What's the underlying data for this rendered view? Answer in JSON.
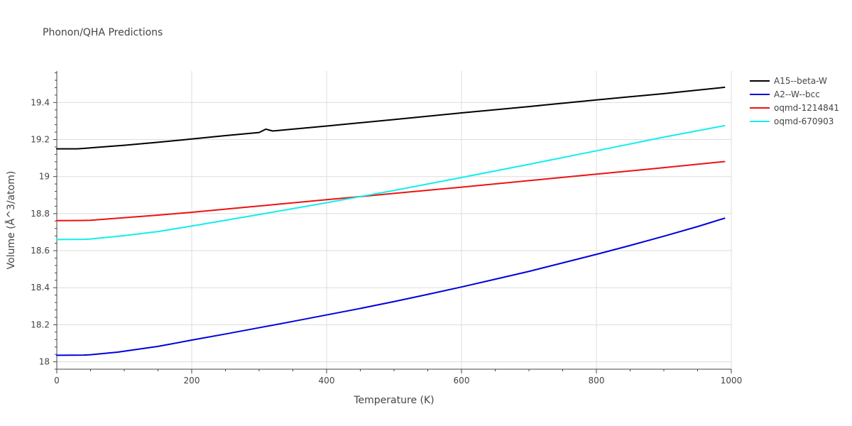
{
  "chart_data": {
    "type": "line",
    "title": "Phonon/QHA Predictions",
    "xlabel": "Temperature (K)",
    "ylabel": "Volume (Å^3/atom)",
    "xlim": [
      0,
      1000
    ],
    "ylim": [
      17.96,
      19.57
    ],
    "x_ticks": [
      0,
      200,
      400,
      600,
      800,
      1000
    ],
    "x_tick_labels": [
      "0",
      "200",
      "400",
      "600",
      "800",
      "1000"
    ],
    "y_ticks": [
      18,
      18.2,
      18.4,
      18.6,
      18.8,
      19,
      19.2,
      19.4
    ],
    "y_tick_labels": [
      "18",
      "18.2",
      "18.4",
      "18.6",
      "18.8",
      "19",
      "19.2",
      "19.4"
    ],
    "grid": true,
    "legend_position": "top-right",
    "series": [
      {
        "name": "A15--beta-W",
        "color": "#000000",
        "x": [
          0,
          30,
          40,
          60,
          100,
          150,
          200,
          250,
          300,
          310,
          320,
          350,
          400,
          500,
          600,
          700,
          800,
          900,
          990
        ],
        "y": [
          19.15,
          19.15,
          19.152,
          19.158,
          19.169,
          19.185,
          19.203,
          19.221,
          19.238,
          19.256,
          19.246,
          19.256,
          19.273,
          19.308,
          19.344,
          19.378,
          19.414,
          19.448,
          19.482
        ]
      },
      {
        "name": "A2--W--bcc",
        "color": "#0000dd",
        "x": [
          0,
          40,
          50,
          90,
          150,
          200,
          250,
          300,
          350,
          400,
          450,
          500,
          550,
          600,
          650,
          700,
          750,
          800,
          850,
          900,
          950,
          990
        ],
        "y": [
          18.035,
          18.036,
          18.038,
          18.052,
          18.083,
          18.117,
          18.15,
          18.184,
          18.218,
          18.253,
          18.288,
          18.325,
          18.364,
          18.404,
          18.446,
          18.488,
          18.534,
          18.58,
          18.628,
          18.678,
          18.73,
          18.775
        ]
      },
      {
        "name": "oqmd-1214841",
        "color": "#ee1111",
        "x": [
          0,
          40,
          50,
          100,
          150,
          200,
          300,
          400,
          500,
          600,
          700,
          800,
          900,
          990
        ],
        "y": [
          18.762,
          18.763,
          18.764,
          18.778,
          18.792,
          18.807,
          18.841,
          18.875,
          18.909,
          18.943,
          18.978,
          19.013,
          19.048,
          19.081
        ]
      },
      {
        "name": "oqmd-670903",
        "color": "#11eeee",
        "x": [
          0,
          40,
          50,
          100,
          150,
          200,
          300,
          400,
          500,
          600,
          700,
          800,
          900,
          990
        ],
        "y": [
          18.66,
          18.661,
          18.663,
          18.681,
          18.703,
          18.733,
          18.795,
          18.859,
          18.925,
          18.995,
          19.066,
          19.139,
          19.213,
          19.275
        ]
      }
    ]
  }
}
